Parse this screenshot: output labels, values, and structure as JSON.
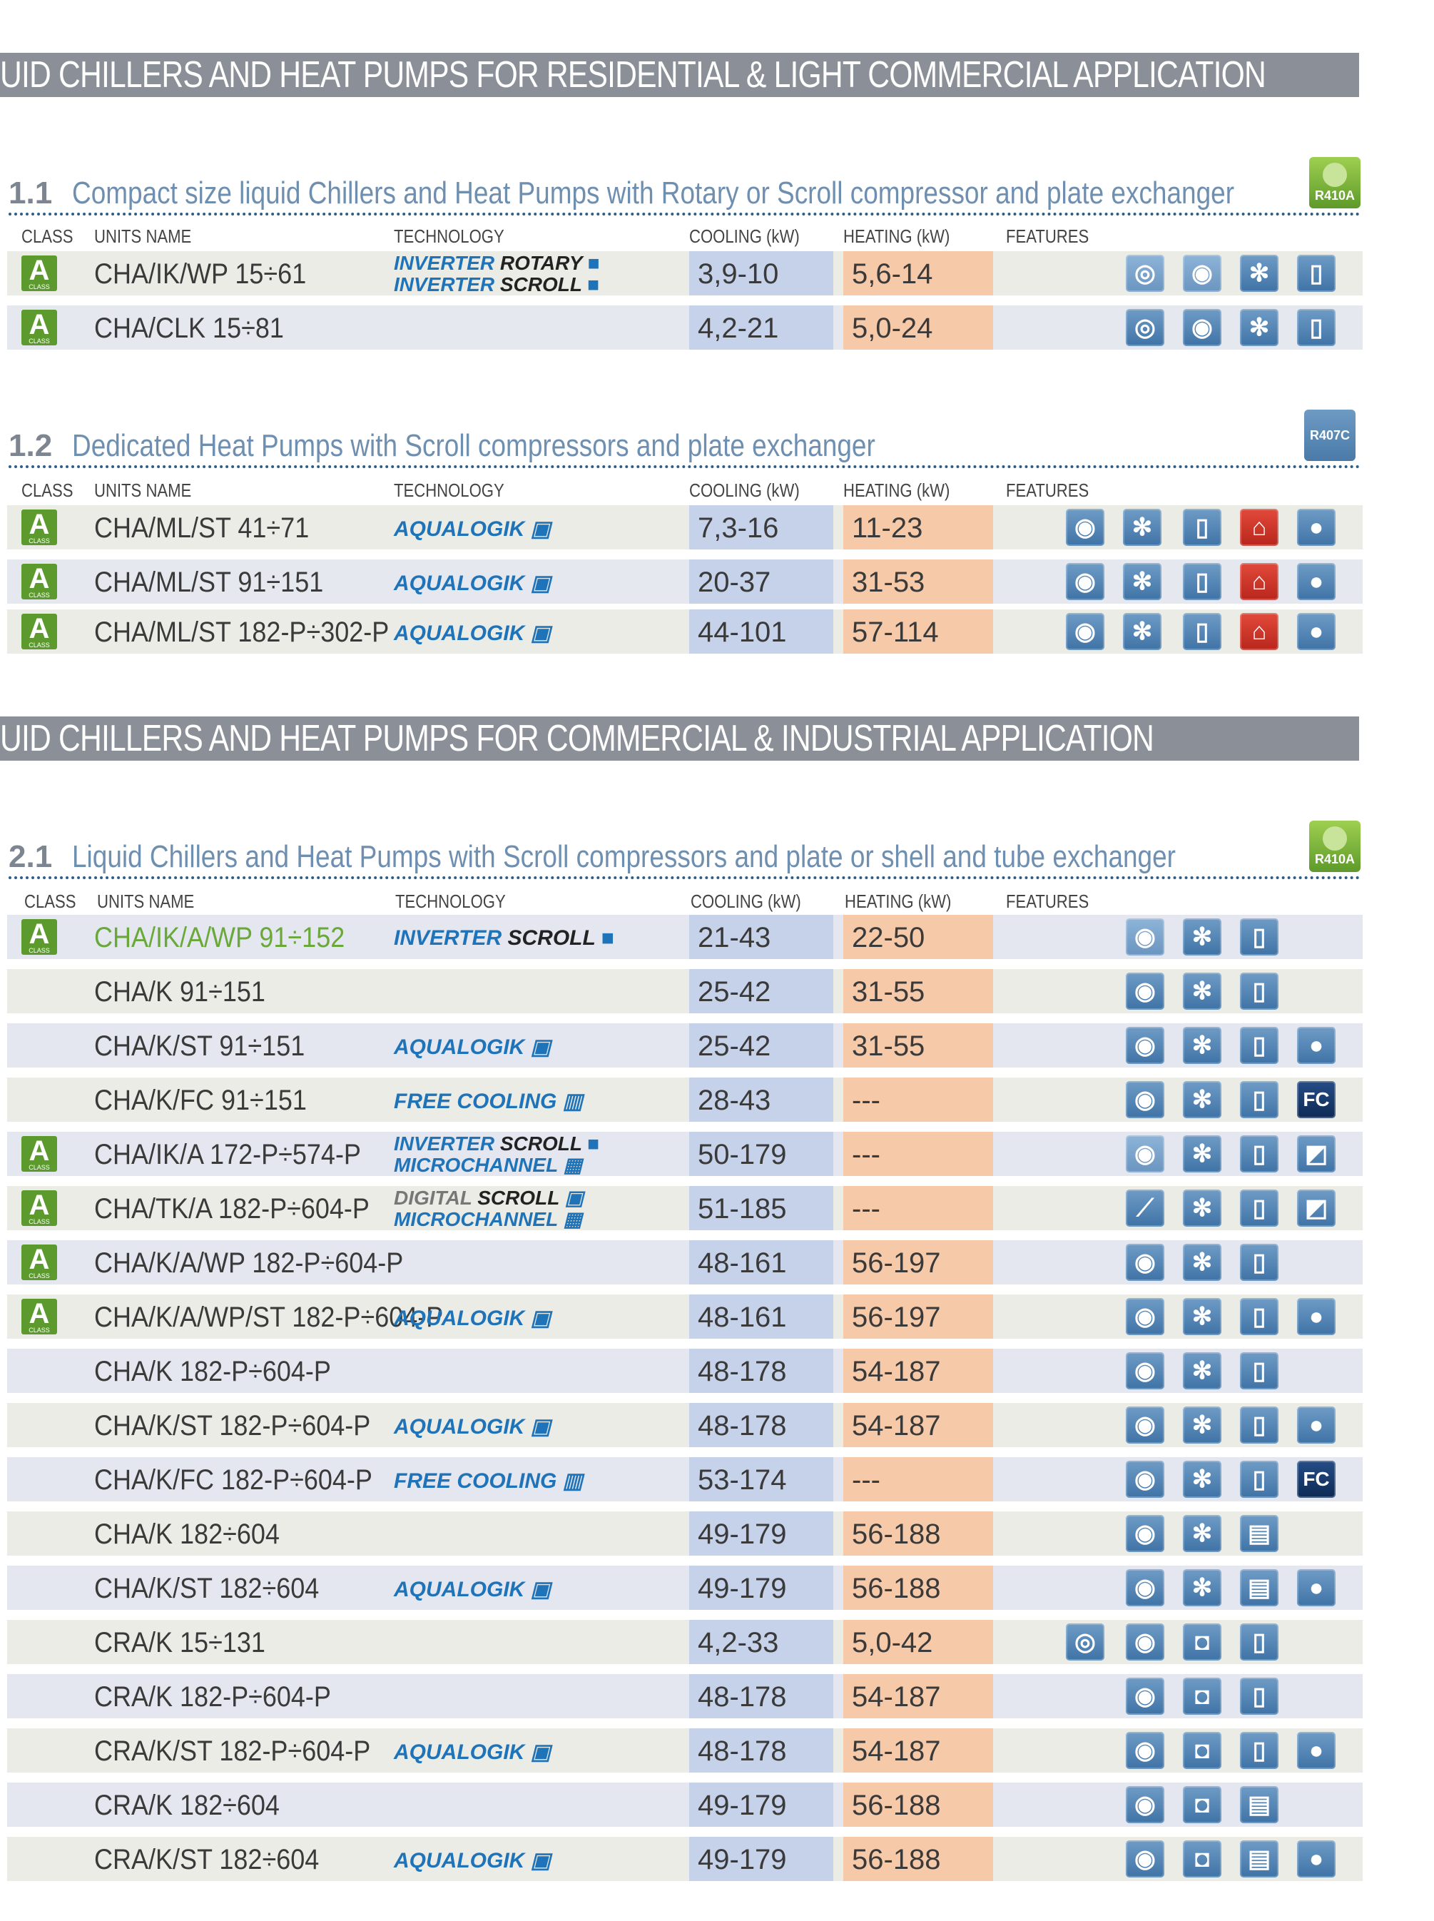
{
  "bands": [
    "UID CHILLERS AND HEAT PUMPS FOR RESIDENTIAL & LIGHT COMMERCIAL APPLICATION",
    "UID CHILLERS AND HEAT PUMPS FOR COMMERCIAL & INDUSTRIAL APPLICATION"
  ],
  "columns": {
    "class": "CLASS",
    "units": "UNITS NAME",
    "technology": "TECHNOLOGY",
    "cooling": "COOLING (kW)",
    "heating": "HEATING (kW)",
    "features": "FEATURES"
  },
  "class_badge": {
    "letter": "A",
    "caption": "CLASS"
  },
  "refrigerant_badges": {
    "r410a": "R410A",
    "r407c": "R407C"
  },
  "technologies": {
    "inverter_rotary": "INVERTER ROTARY",
    "inverter_scroll": "INVERTER SCROLL",
    "aqualogik": "AQUALOGIK",
    "free_cooling": "FREE COOLING",
    "microchannel": "MICROCHANNEL",
    "digital": "DIGITAL",
    "scroll": "SCROLL"
  },
  "fc_label": "FC",
  "sections": [
    {
      "num": "1.1",
      "title": "Compact size liquid Chillers and Heat Pumps with Rotary or Scroll compressor and plate exchanger",
      "rows": [
        {
          "class_a": true,
          "name": "CHA/IK/WP 15÷61",
          "tech": [
            "INVERTER ROTARY",
            "INVERTER SCROLL"
          ],
          "cooling": "3,9-10",
          "heating": "5,6-14",
          "features": [
            "inverter-rotary-icon",
            "inverter-scroll-icon",
            "fan-icon",
            "pump-icon"
          ]
        },
        {
          "class_a": true,
          "name": "CHA/CLK 15÷81",
          "tech": [],
          "cooling": "4,2-21",
          "heating": "5,0-24",
          "features": [
            "rotary-compressor-icon",
            "scroll-compressor-icon",
            "fan-icon",
            "pump-icon"
          ]
        }
      ]
    },
    {
      "num": "1.2",
      "title": "Dedicated Heat Pumps with Scroll compressors and plate exchanger",
      "rows": [
        {
          "class_a": true,
          "name": "CHA/ML/ST 41÷71",
          "tech": [
            "AQUALOGIK"
          ],
          "cooling": "7,3-16",
          "heating": "11-23",
          "features": [
            "scroll-compressor-icon",
            "fan-icon",
            "pump-icon",
            "hot-water-icon",
            "water-drop-icon"
          ]
        },
        {
          "class_a": true,
          "name": "CHA/ML/ST 91÷151",
          "tech": [
            "AQUALOGIK"
          ],
          "cooling": "20-37",
          "heating": "31-53",
          "features": [
            "scroll-compressor-icon",
            "fan-icon",
            "pump-icon",
            "hot-water-icon",
            "water-drop-icon"
          ]
        },
        {
          "class_a": true,
          "name": "CHA/ML/ST 182-P÷302-P",
          "tech": [
            "AQUALOGIK"
          ],
          "cooling": "44-101",
          "heating": "57-114",
          "features": [
            "scroll-compressor-icon",
            "fan-icon",
            "pump-icon",
            "hot-water-icon",
            "water-drop-icon"
          ]
        }
      ]
    },
    {
      "num": "2.1",
      "title": "Liquid Chillers and Heat Pumps with Scroll compressors and plate or shell and tube exchanger",
      "rows": [
        {
          "class_a": true,
          "name": "CHA/IK/A/WP 91÷152",
          "green": true,
          "tech": [
            "INVERTER SCROLL"
          ],
          "cooling": "21-43",
          "heating": "22-50",
          "features": [
            "inverter-scroll-icon",
            "fan-icon",
            "pump-icon"
          ]
        },
        {
          "class_a": false,
          "name": "CHA/K 91÷151",
          "tech": [],
          "cooling": "25-42",
          "heating": "31-55",
          "features": [
            "scroll-compressor-icon",
            "fan-icon",
            "pump-icon"
          ]
        },
        {
          "class_a": false,
          "name": "CHA/K/ST 91÷151",
          "tech": [
            "AQUALOGIK"
          ],
          "cooling": "25-42",
          "heating": "31-55",
          "features": [
            "scroll-compressor-icon",
            "fan-icon",
            "pump-icon",
            "water-drop-icon"
          ]
        },
        {
          "class_a": false,
          "name": "CHA/K/FC 91÷151",
          "tech": [
            "FREE COOLING"
          ],
          "cooling": "28-43",
          "heating": "---",
          "features": [
            "scroll-compressor-icon",
            "fan-icon",
            "pump-icon",
            "free-cooling-icon"
          ]
        },
        {
          "class_a": true,
          "name": "CHA/IK/A 172-P÷574-P",
          "tech": [
            "INVERTER SCROLL",
            "MICROCHANNEL"
          ],
          "cooling": "50-179",
          "heating": "---",
          "features": [
            "inverter-scroll-icon",
            "fan-icon",
            "pump-icon",
            "microchannel-icon"
          ]
        },
        {
          "class_a": true,
          "name": "CHA/TK/A 182-P÷604-P",
          "tech": [
            "DIGITAL SCROLL",
            "MICROCHANNEL"
          ],
          "cooling": "51-185",
          "heating": "---",
          "features": [
            "digital-scroll-icon",
            "fan-icon",
            "pump-icon",
            "microchannel-icon"
          ]
        },
        {
          "class_a": true,
          "name": "CHA/K/A/WP 182-P÷604-P",
          "tech": [],
          "cooling": "48-161",
          "heating": "56-197",
          "features": [
            "scroll-compressor-icon",
            "fan-icon",
            "pump-icon"
          ]
        },
        {
          "class_a": true,
          "name": "CHA/K/A/WP/ST 182-P÷604-P",
          "tech": [
            "AQUALOGIK"
          ],
          "cooling": "48-161",
          "heating": "56-197",
          "features": [
            "scroll-compressor-icon",
            "fan-icon",
            "pump-icon",
            "water-drop-icon"
          ]
        },
        {
          "class_a": false,
          "name": "CHA/K 182-P÷604-P",
          "tech": [],
          "cooling": "48-178",
          "heating": "54-187",
          "features": [
            "scroll-compressor-icon",
            "fan-icon",
            "pump-icon"
          ]
        },
        {
          "class_a": false,
          "name": "CHA/K/ST 182-P÷604-P",
          "tech": [
            "AQUALOGIK"
          ],
          "cooling": "48-178",
          "heating": "54-187",
          "features": [
            "scroll-compressor-icon",
            "fan-icon",
            "pump-icon",
            "water-drop-icon"
          ]
        },
        {
          "class_a": false,
          "name": "CHA/K/FC 182-P÷604-P",
          "tech": [
            "FREE COOLING"
          ],
          "cooling": "53-174",
          "heating": "---",
          "features": [
            "scroll-compressor-icon",
            "fan-icon",
            "pump-icon",
            "free-cooling-icon"
          ]
        },
        {
          "class_a": false,
          "name": "CHA/K 182÷604",
          "tech": [],
          "cooling": "49-179",
          "heating": "56-188",
          "features": [
            "scroll-compressor-icon",
            "fan-icon",
            "tank-icon"
          ]
        },
        {
          "class_a": false,
          "name": "CHA/K/ST 182÷604",
          "tech": [
            "AQUALOGIK"
          ],
          "cooling": "49-179",
          "heating": "56-188",
          "features": [
            "scroll-compressor-icon",
            "fan-icon",
            "tank-icon",
            "water-drop-icon"
          ]
        },
        {
          "class_a": false,
          "name": "CRA/K 15÷131",
          "tech": [],
          "cooling": "4,2-33",
          "heating": "5,0-42",
          "features": [
            "rotary-compressor-icon",
            "scroll-compressor-icon",
            "centrifugal-fan-icon",
            "pump-icon"
          ]
        },
        {
          "class_a": false,
          "name": "CRA/K 182-P÷604-P",
          "tech": [],
          "cooling": "48-178",
          "heating": "54-187",
          "features": [
            "scroll-compressor-icon",
            "centrifugal-fan-icon",
            "pump-icon"
          ]
        },
        {
          "class_a": false,
          "name": "CRA/K/ST 182-P÷604-P",
          "tech": [
            "AQUALOGIK"
          ],
          "cooling": "48-178",
          "heating": "54-187",
          "features": [
            "scroll-compressor-icon",
            "centrifugal-fan-icon",
            "pump-icon",
            "water-drop-icon"
          ]
        },
        {
          "class_a": false,
          "name": "CRA/K 182÷604",
          "tech": [],
          "cooling": "49-179",
          "heating": "56-188",
          "features": [
            "scroll-compressor-icon",
            "centrifugal-fan-icon",
            "tank-icon"
          ]
        },
        {
          "class_a": false,
          "name": "CRA/K/ST 182÷604",
          "tech": [
            "AQUALOGIK"
          ],
          "cooling": "49-179",
          "heating": "56-188",
          "features": [
            "scroll-compressor-icon",
            "centrifugal-fan-icon",
            "tank-icon",
            "water-drop-icon"
          ]
        }
      ]
    }
  ]
}
